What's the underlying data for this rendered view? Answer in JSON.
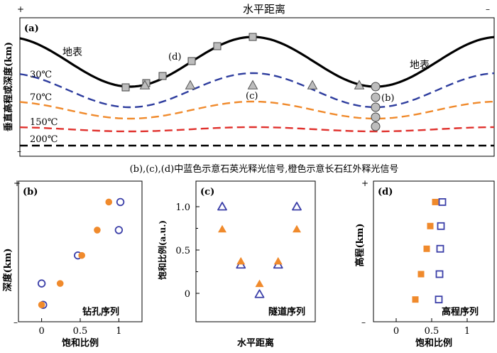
{
  "chart_data": [
    {
      "panel": "(a)",
      "type": "line",
      "title": "水平距离",
      "ylabel": "垂直高程或深度(km)",
      "plus_sign": "+",
      "minus_sign": "–",
      "surface_label_left": "地表",
      "surface_label_right": "地表",
      "isotherms": [
        {
          "label": "30℃",
          "color": "#2e3d9e",
          "style": "dashed"
        },
        {
          "label": "70℃",
          "color": "#f08a2c",
          "style": "dashed"
        },
        {
          "label": "150℃",
          "color": "#e0312d",
          "style": "dashed"
        },
        {
          "label": "200℃",
          "color": "#000000",
          "style": "dashed"
        }
      ],
      "sample_labels": {
        "elevation": "(d)",
        "tunnel": "(c)",
        "borehole": "(b)"
      },
      "sample_types": [
        "elevation transect (squares)",
        "tunnel (triangles)",
        "borehole (circles)"
      ]
    },
    {
      "panel": "(b)",
      "type": "scatter",
      "xlabel": "饱和比例",
      "ylabel": "深度(km)",
      "series_label": "钻孔序列",
      "xticks": [
        "0",
        "0.5",
        "1"
      ],
      "xlim": [
        -0.3,
        1.3
      ],
      "ylim": [
        0,
        1
      ],
      "series": [
        {
          "name": "石英光释光",
          "marker": "open-circle",
          "color": "#3b3fa8",
          "points": [
            [
              1.02,
              0.87
            ],
            [
              1.0,
              0.66
            ],
            [
              0.47,
              0.47
            ],
            [
              0.0,
              0.26
            ],
            [
              0.02,
              0.1
            ]
          ]
        },
        {
          "name": "长石红外释光",
          "marker": "filled-circle",
          "color": "#f08a2c",
          "points": [
            [
              0.87,
              0.87
            ],
            [
              0.72,
              0.66
            ],
            [
              0.52,
              0.47
            ],
            [
              0.24,
              0.26
            ],
            [
              0.0,
              0.1
            ]
          ]
        }
      ]
    },
    {
      "panel": "(c)",
      "type": "scatter",
      "xlabel": "水平距离",
      "ylabel": "饱和比例(a.u.)",
      "series_label": "隧道序列",
      "yticks": [
        "0",
        "0.5",
        "1.0"
      ],
      "ylim": [
        -0.3,
        1.3
      ],
      "series": [
        {
          "name": "石英光释光",
          "marker": "open-triangle",
          "color": "#3b3fa8",
          "points": [
            [
              0.0,
              1.0
            ],
            [
              0.25,
              0.33
            ],
            [
              0.5,
              -0.01
            ],
            [
              0.75,
              0.33
            ],
            [
              1.0,
              1.0
            ]
          ]
        },
        {
          "name": "长石红外释光",
          "marker": "filled-triangle",
          "color": "#f08a2c",
          "points": [
            [
              0.0,
              0.74
            ],
            [
              0.25,
              0.37
            ],
            [
              0.5,
              0.11
            ],
            [
              0.75,
              0.37
            ],
            [
              1.0,
              0.74
            ]
          ]
        }
      ]
    },
    {
      "panel": "(d)",
      "type": "scatter",
      "xlabel": "饱和比例",
      "ylabel": "高程(km)",
      "series_label": "高程序列",
      "xticks": [
        "0",
        "0.5",
        "1"
      ],
      "xlim": [
        -0.3,
        1.3
      ],
      "ylim": [
        0,
        1
      ],
      "series": [
        {
          "name": "石英光释光",
          "marker": "open-square",
          "color": "#3b3fa8",
          "points": [
            [
              0.65,
              0.87
            ],
            [
              0.63,
              0.69
            ],
            [
              0.62,
              0.52
            ],
            [
              0.61,
              0.33
            ],
            [
              0.6,
              0.14
            ]
          ]
        },
        {
          "name": "长石红外释光",
          "marker": "filled-square",
          "color": "#f08a2c",
          "points": [
            [
              0.55,
              0.87
            ],
            [
              0.48,
              0.69
            ],
            [
              0.43,
              0.52
            ],
            [
              0.35,
              0.33
            ],
            [
              0.27,
              0.14
            ]
          ]
        }
      ]
    }
  ],
  "caption": "(b),(c),(d)中蓝色示意石英光释光信号,橙色示意长石红外释光信号"
}
